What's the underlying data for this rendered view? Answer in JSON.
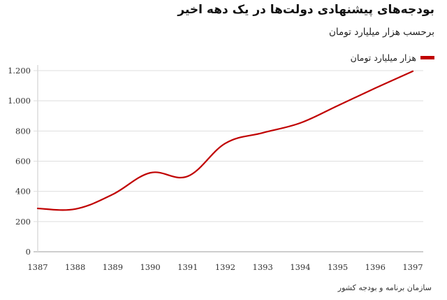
{
  "header": {
    "title": "بودجه‌های پیشنهادی دولت‌ها در یک دهه اخیر",
    "subtitle": "برحسب هزار میلیارد تومان"
  },
  "legend": {
    "label": "هزار میلیارد تومان",
    "color": "#c00000"
  },
  "footer": {
    "source": "سازمان برنامه و بودجه کشور"
  },
  "chart_data": {
    "type": "line",
    "title": "بودجه‌های پیشنهادی دولت‌ها در یک دهه اخیر",
    "subtitle": "برحسب هزار میلیارد تومان",
    "xlabel": "",
    "ylabel": "",
    "categories": [
      "1387",
      "1388",
      "1389",
      "1390",
      "1391",
      "1392",
      "1393",
      "1394",
      "1395",
      "1396",
      "1397"
    ],
    "series": [
      {
        "name": "هزار میلیارد تومان",
        "color": "#c00000",
        "values": [
          287,
          283,
          380,
          523,
          500,
          718,
          788,
          853,
          968,
          1084,
          1196
        ]
      }
    ],
    "yticks": [
      0,
      200,
      400,
      600,
      800,
      1000,
      1200
    ],
    "ytick_labels": [
      "0",
      "200",
      "400",
      "600",
      "800",
      "1.000",
      "1.200"
    ],
    "ylim": [
      0,
      1200
    ],
    "grid": true,
    "legend_position": "top-right",
    "source": "سازمان برنامه و بودجه کشور"
  }
}
